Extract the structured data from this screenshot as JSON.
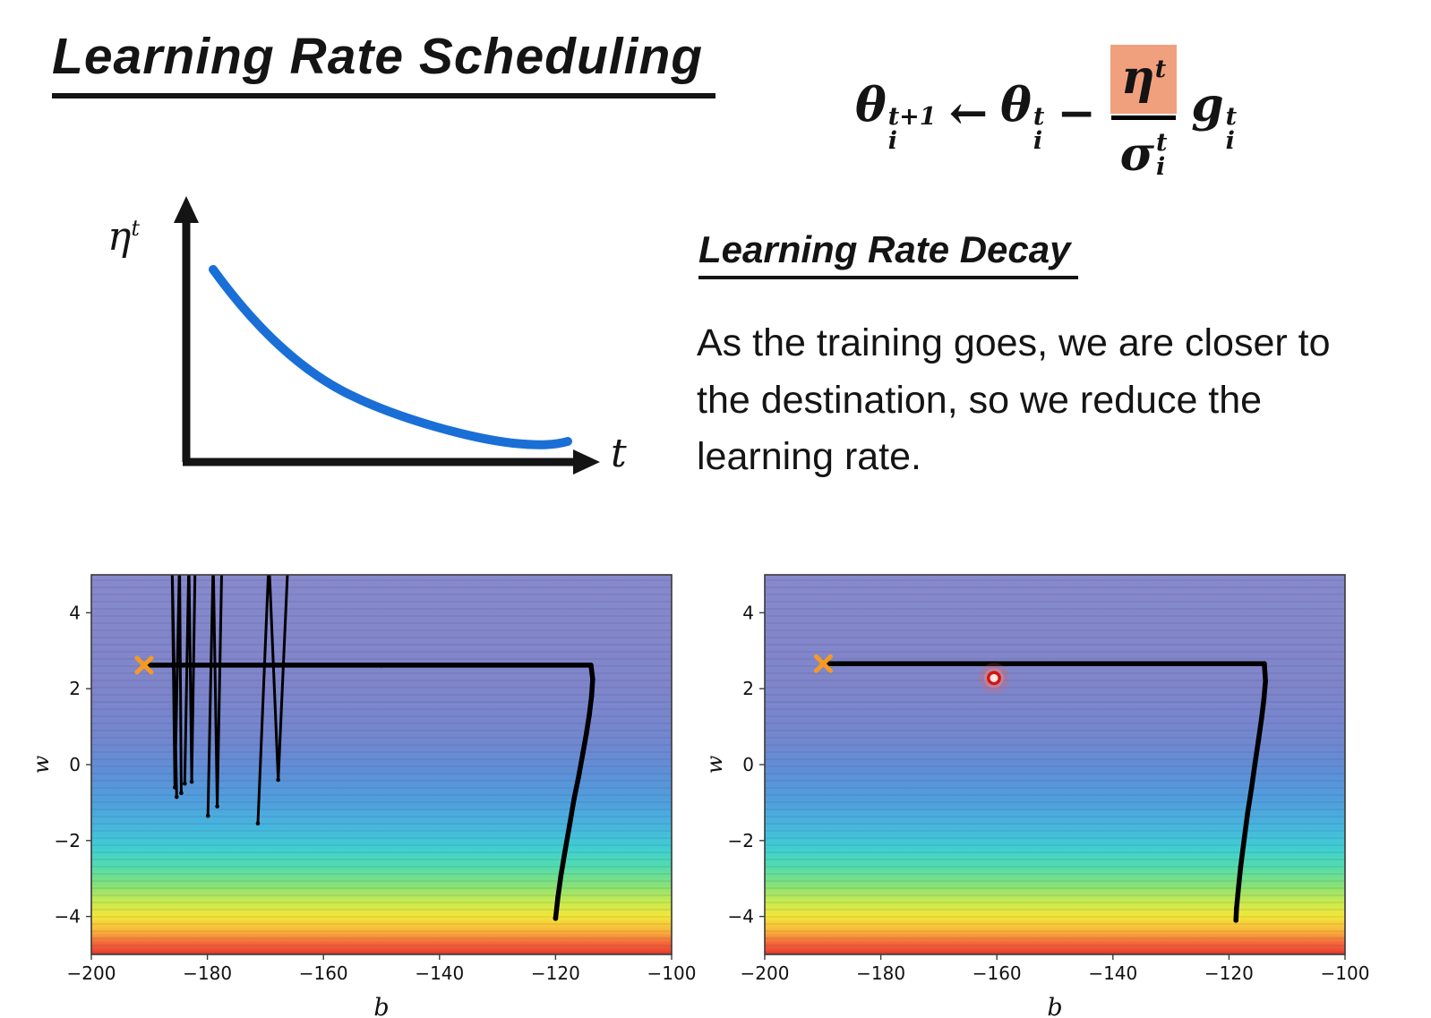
{
  "slide": {
    "title": "Learning Rate Scheduling",
    "formula": {
      "theta": "θ",
      "arrow": "←",
      "minus": "−",
      "lhs_sup": "t+1",
      "lhs_sub": "i",
      "rhs_sup": "t",
      "rhs_sub": "i",
      "eta": "η",
      "eta_sup": "t",
      "sigma": "σ",
      "sigma_sup": "t",
      "sigma_sub": "i",
      "g": "g",
      "g_sup": "t",
      "g_sub": "i",
      "highlight_color": "#f1a07e"
    },
    "sketch": {
      "ylabel_base": "η",
      "ylabel_sup": "t",
      "xlabel": "t",
      "curve_color": "#1a6fd6"
    },
    "decay": {
      "heading": "Learning Rate Decay",
      "body": "As the training goes, we are closer to the destination, so we reduce the learning rate."
    }
  },
  "chart_data": [
    {
      "type": "scatter",
      "title": "",
      "xlabel": "b",
      "ylabel": "w",
      "xlim": [
        -200,
        -100
      ],
      "ylim": [
        -5,
        5
      ],
      "xticks": [
        -200,
        -180,
        -160,
        -140,
        -120,
        -100
      ],
      "yticks": [
        -4,
        -2,
        0,
        2,
        4
      ],
      "grid": false,
      "legend": "none",
      "bg_stops": [
        [
          "0%",
          "#8789cb"
        ],
        [
          "30%",
          "#7f85ca"
        ],
        [
          "44%",
          "#7187cf"
        ],
        [
          "52%",
          "#5e8fd7"
        ],
        [
          "60%",
          "#50a0dd"
        ],
        [
          "67%",
          "#46b8dd"
        ],
        [
          "72%",
          "#40ced2"
        ],
        [
          "77%",
          "#54dcab"
        ],
        [
          "82%",
          "#88e275"
        ],
        [
          "86%",
          "#c6ea50"
        ],
        [
          "90%",
          "#f3e739"
        ],
        [
          "94%",
          "#f9b23a"
        ],
        [
          "97%",
          "#f3683a"
        ],
        [
          "100%",
          "#e73c2d"
        ]
      ],
      "contour_line_color": "rgba(35,35,90,0.16)",
      "paths": [
        {
          "width": 5.5,
          "dots": true,
          "points": [
            [
              -190.6,
              2.62
            ],
            [
              -150,
              2.62
            ],
            [
              -113.9,
              2.62
            ],
            [
              -113.6,
              2.25
            ],
            [
              -113.8,
              1.8
            ],
            [
              -114.2,
              1.3
            ],
            [
              -114.7,
              0.8
            ],
            [
              -115.3,
              0.3
            ],
            [
              -116.0,
              -0.3
            ],
            [
              -116.8,
              -0.9
            ],
            [
              -117.6,
              -1.6
            ],
            [
              -118.4,
              -2.3
            ],
            [
              -119.1,
              -2.95
            ],
            [
              -119.6,
              -3.5
            ],
            [
              -120.0,
              -4.05
            ]
          ]
        },
        {
          "width": 3,
          "dots": true,
          "points": [
            [
              -185.3,
              -0.85
            ],
            [
              -186.1,
              5.4
            ],
            [
              -185.6,
              -0.6
            ],
            [
              -184.8,
              5.4
            ],
            [
              -184.5,
              -0.75
            ]
          ]
        },
        {
          "width": 3,
          "dots": true,
          "points": [
            [
              -183.9,
              -0.5
            ],
            [
              -183.2,
              5.4
            ],
            [
              -182.7,
              -0.45
            ],
            [
              -182.1,
              5.4
            ]
          ]
        },
        {
          "width": 3,
          "dots": true,
          "points": [
            [
              -179.9,
              -1.35
            ],
            [
              -179.0,
              5.4
            ],
            [
              -178.3,
              -1.1
            ],
            [
              -177.5,
              5.4
            ]
          ]
        },
        {
          "width": 3,
          "dots": true,
          "points": [
            [
              -171.3,
              -1.55
            ],
            [
              -169.4,
              5.4
            ],
            [
              -167.8,
              -0.4
            ],
            [
              -166.1,
              5.4
            ]
          ]
        }
      ],
      "markers": [
        {
          "type": "cross",
          "x": -190.9,
          "y": 2.62,
          "color": "#f59a23"
        }
      ]
    },
    {
      "type": "scatter",
      "title": "",
      "xlabel": "b",
      "ylabel": "w",
      "xlim": [
        -200,
        -100
      ],
      "ylim": [
        -5,
        5
      ],
      "xticks": [
        -200,
        -180,
        -160,
        -140,
        -120,
        -100
      ],
      "yticks": [
        -4,
        -2,
        0,
        2,
        4
      ],
      "grid": false,
      "legend": "none",
      "bg_stops": [
        [
          "0%",
          "#8789cb"
        ],
        [
          "30%",
          "#7f85ca"
        ],
        [
          "44%",
          "#7187cf"
        ],
        [
          "52%",
          "#5e8fd7"
        ],
        [
          "60%",
          "#50a0dd"
        ],
        [
          "67%",
          "#46b8dd"
        ],
        [
          "72%",
          "#40ced2"
        ],
        [
          "77%",
          "#54dcab"
        ],
        [
          "82%",
          "#88e275"
        ],
        [
          "86%",
          "#c6ea50"
        ],
        [
          "90%",
          "#f3e739"
        ],
        [
          "94%",
          "#f9b23a"
        ],
        [
          "97%",
          "#f3683a"
        ],
        [
          "100%",
          "#e73c2d"
        ]
      ],
      "contour_line_color": "rgba(35,35,90,0.16)",
      "paths": [
        {
          "width": 5.5,
          "dots": true,
          "points": [
            [
              -189.6,
              2.66
            ],
            [
              -150,
              2.66
            ],
            [
              -113.9,
              2.66
            ],
            [
              -113.7,
              2.2
            ],
            [
              -114.0,
              1.7
            ],
            [
              -114.4,
              1.2
            ],
            [
              -114.9,
              0.65
            ],
            [
              -115.5,
              0.05
            ],
            [
              -116.1,
              -0.6
            ],
            [
              -116.8,
              -1.3
            ],
            [
              -117.4,
              -2.0
            ],
            [
              -118.0,
              -2.7
            ],
            [
              -118.4,
              -3.3
            ],
            [
              -118.7,
              -3.8
            ],
            [
              -118.8,
              -4.1
            ]
          ]
        }
      ],
      "markers": [
        {
          "type": "cross",
          "x": -189.9,
          "y": 2.66,
          "color": "#f59a23"
        },
        {
          "type": "circle-glow",
          "x": -160.5,
          "y": 2.28,
          "color": "#d21414"
        }
      ]
    }
  ]
}
